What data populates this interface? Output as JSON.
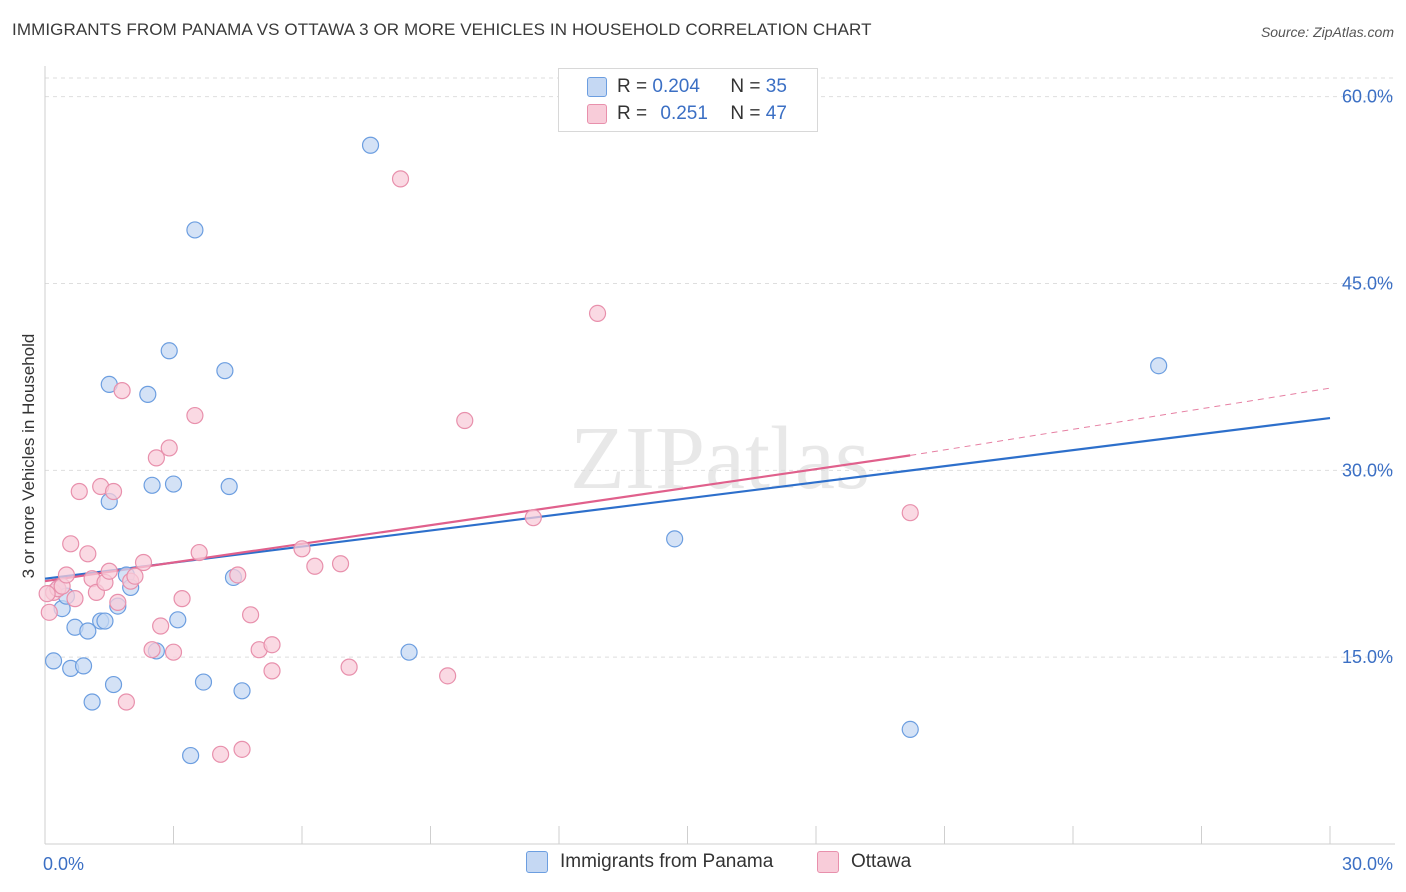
{
  "title": "IMMIGRANTS FROM PANAMA VS OTTAWA 3 OR MORE VEHICLES IN HOUSEHOLD CORRELATION CHART",
  "source": "Source: ZipAtlas.com",
  "watermark": "ZIPatlas",
  "legend_top": {
    "rows": [
      {
        "r_label": "R =",
        "r_value": "0.204",
        "n_label": "N =",
        "n_value": "35"
      },
      {
        "r_label": "R =",
        "r_value": "0.251",
        "n_label": "N =",
        "n_value": "47"
      }
    ]
  },
  "legend_bottom": {
    "items": [
      {
        "label": "Immigrants from Panama"
      },
      {
        "label": "Ottawa"
      }
    ]
  },
  "colors": {
    "panama_fill": "#c5d8f3",
    "panama_stroke": "#6c9ee0",
    "panama_line": "#2d6fcb",
    "ottawa_fill": "#f8ccd9",
    "ottawa_stroke": "#e890ac",
    "ottawa_line": "#e0608c",
    "axis_text": "#3b6fc4"
  },
  "chart_data": {
    "type": "scatter",
    "title": "IMMIGRANTS FROM PANAMA VS OTTAWA 3 OR MORE VEHICLES IN HOUSEHOLD CORRELATION CHART",
    "xlabel": "",
    "ylabel": "3 or more Vehicles in Household",
    "xlim": [
      0,
      30
    ],
    "ylim": [
      0,
      61.5
    ],
    "x_tick_labels": [
      "0.0%",
      "30.0%"
    ],
    "y_tick_labels": [
      "15.0%",
      "30.0%",
      "45.0%",
      "60.0%"
    ],
    "y_ticks": [
      15,
      30,
      45,
      60
    ],
    "grid": true,
    "legend_position": "top-center",
    "series": [
      {
        "name": "Immigrants from Panama",
        "points": [
          [
            0.2,
            14.7
          ],
          [
            0.4,
            18.9
          ],
          [
            0.3,
            20.5
          ],
          [
            0.5,
            19.9
          ],
          [
            0.6,
            14.1
          ],
          [
            0.7,
            17.4
          ],
          [
            0.9,
            14.3
          ],
          [
            1.0,
            17.1
          ],
          [
            1.1,
            11.4
          ],
          [
            1.3,
            17.9
          ],
          [
            1.4,
            17.9
          ],
          [
            1.5,
            27.5
          ],
          [
            1.6,
            12.8
          ],
          [
            1.7,
            19.1
          ],
          [
            1.9,
            21.6
          ],
          [
            2.0,
            20.6
          ],
          [
            1.5,
            36.9
          ],
          [
            2.4,
            36.1
          ],
          [
            2.5,
            28.8
          ],
          [
            2.6,
            15.5
          ],
          [
            2.9,
            39.6
          ],
          [
            3.0,
            28.9
          ],
          [
            3.1,
            18.0
          ],
          [
            3.4,
            7.1
          ],
          [
            3.5,
            49.3
          ],
          [
            3.7,
            13.0
          ],
          [
            4.2,
            38.0
          ],
          [
            4.3,
            28.7
          ],
          [
            4.4,
            21.4
          ],
          [
            4.6,
            12.3
          ],
          [
            7.6,
            56.1
          ],
          [
            8.5,
            15.4
          ],
          [
            14.7,
            24.5
          ],
          [
            20.2,
            9.2
          ],
          [
            26.0,
            38.4
          ]
        ],
        "trend": {
          "x": [
            0,
            30
          ],
          "y": [
            21.3,
            34.2
          ]
        }
      },
      {
        "name": "Ottawa",
        "points": [
          [
            0.1,
            18.6
          ],
          [
            0.2,
            20.2
          ],
          [
            0.3,
            20.5
          ],
          [
            0.4,
            20.7
          ],
          [
            0.5,
            21.6
          ],
          [
            0.6,
            24.1
          ],
          [
            0.7,
            19.7
          ],
          [
            0.8,
            28.3
          ],
          [
            1.0,
            23.3
          ],
          [
            1.1,
            21.3
          ],
          [
            1.2,
            20.2
          ],
          [
            1.3,
            28.7
          ],
          [
            1.4,
            21.0
          ],
          [
            1.5,
            21.9
          ],
          [
            1.6,
            28.3
          ],
          [
            1.7,
            19.4
          ],
          [
            1.8,
            36.4
          ],
          [
            1.9,
            11.4
          ],
          [
            2.0,
            21.1
          ],
          [
            2.1,
            21.5
          ],
          [
            2.3,
            22.6
          ],
          [
            2.5,
            15.6
          ],
          [
            2.6,
            31.0
          ],
          [
            2.7,
            17.5
          ],
          [
            2.9,
            31.8
          ],
          [
            3.0,
            15.4
          ],
          [
            3.2,
            19.7
          ],
          [
            3.5,
            34.4
          ],
          [
            3.6,
            23.4
          ],
          [
            4.1,
            7.2
          ],
          [
            4.5,
            21.6
          ],
          [
            4.6,
            7.6
          ],
          [
            4.8,
            18.4
          ],
          [
            5.0,
            15.6
          ],
          [
            5.3,
            13.9
          ],
          [
            5.3,
            16.0
          ],
          [
            6.0,
            23.7
          ],
          [
            6.3,
            22.3
          ],
          [
            6.9,
            22.5
          ],
          [
            7.1,
            14.2
          ],
          [
            8.3,
            53.4
          ],
          [
            9.4,
            13.5
          ],
          [
            9.8,
            34.0
          ],
          [
            11.4,
            26.2
          ],
          [
            12.9,
            42.6
          ],
          [
            20.2,
            26.6
          ],
          [
            0.05,
            20.1
          ]
        ],
        "trend": {
          "x": [
            0,
            20.2
          ],
          "y": [
            21.1,
            31.2
          ]
        },
        "trend_extension": {
          "x": [
            20.2,
            30
          ],
          "y": [
            31.2,
            36.6
          ]
        }
      }
    ]
  }
}
